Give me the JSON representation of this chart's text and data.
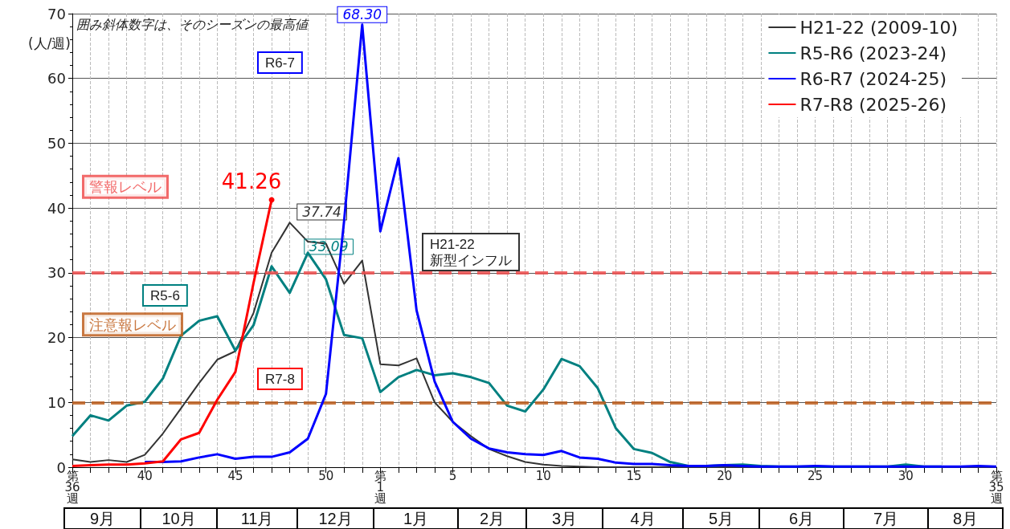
{
  "chart_data": {
    "type": "line",
    "ylabel": "(人/週)",
    "categories": [
      "第\n36\n週",
      null,
      null,
      null,
      "40",
      null,
      null,
      null,
      null,
      "45",
      null,
      null,
      null,
      null,
      "50",
      null,
      null,
      "第\n1\n週",
      null,
      null,
      null,
      "5",
      null,
      null,
      null,
      null,
      "10",
      null,
      null,
      null,
      null,
      "15",
      null,
      null,
      null,
      null,
      "20",
      null,
      null,
      null,
      null,
      "25",
      null,
      null,
      null,
      null,
      "30",
      null,
      null,
      null,
      null,
      "第\n35\n週"
    ],
    "series": [
      {
        "name": "H21-22 (2009-10)",
        "color": "#333333",
        "values": [
          1.2,
          0.8,
          1.1,
          0.8,
          1.9,
          5.2,
          9.1,
          13.0,
          16.6,
          17.9,
          23.8,
          33.1,
          37.74,
          34.8,
          34.5,
          28.3,
          31.9,
          15.9,
          15.7,
          16.8,
          10.0,
          7.0,
          4.8,
          2.8,
          1.7,
          0.8,
          0.4,
          0.2,
          0.1,
          0,
          0,
          0,
          0,
          0,
          0,
          0,
          0,
          0,
          0,
          0,
          0,
          0,
          0,
          0,
          0,
          0,
          0,
          0,
          0,
          0,
          0,
          0
        ],
        "value_labels": [
          null,
          null,
          null,
          null,
          null,
          null,
          null,
          null,
          null,
          null,
          null,
          null,
          "37.74",
          null,
          null,
          null,
          null,
          null,
          null,
          null,
          null,
          null,
          null,
          null,
          null,
          null,
          null,
          null,
          null,
          null,
          null,
          null,
          null,
          null,
          null,
          null,
          null,
          null,
          null,
          null,
          null,
          null,
          null,
          null,
          null,
          null,
          null,
          null,
          null,
          null,
          null,
          null
        ]
      },
      {
        "name": "R5-R6 (2023-24)",
        "color": "#008080",
        "values": [
          4.8,
          8.0,
          7.2,
          9.5,
          10.1,
          13.7,
          20.3,
          22.6,
          23.3,
          18.0,
          21.9,
          31.0,
          26.9,
          33.09,
          29.0,
          20.4,
          19.9,
          11.6,
          13.9,
          15.0,
          14.2,
          14.5,
          13.9,
          13.0,
          9.5,
          8.6,
          12.0,
          16.7,
          15.6,
          12.2,
          6.0,
          2.8,
          2.2,
          0.8,
          0.2,
          0.2,
          0.3,
          0.4,
          0.2,
          0.1,
          0.1,
          0.1,
          0.1,
          0.1,
          0.1,
          0.1,
          0.4,
          0.1,
          0.1,
          null,
          null,
          null
        ],
        "value_labels": [
          null,
          null,
          null,
          null,
          null,
          null,
          null,
          null,
          null,
          null,
          null,
          null,
          null,
          "33.09",
          null,
          null,
          null,
          null,
          null,
          null,
          null,
          null,
          null,
          null,
          null,
          null,
          null,
          null,
          null,
          null,
          null,
          null,
          null,
          null,
          null,
          null,
          null,
          null,
          null,
          null,
          null,
          null,
          null,
          null,
          null,
          null,
          null,
          null,
          null,
          null,
          null,
          null
        ]
      },
      {
        "name": "R6-R7 (2024-25)",
        "color": "#0000ff",
        "values": [
          null,
          null,
          null,
          null,
          0.8,
          0.8,
          0.9,
          1.5,
          2.0,
          1.3,
          1.6,
          1.6,
          2.3,
          4.4,
          11.3,
          38.0,
          68.3,
          36.4,
          47.7,
          24.2,
          13.2,
          7.0,
          4.4,
          2.9,
          2.3,
          2.0,
          1.9,
          2.5,
          1.5,
          1.3,
          0.7,
          0.5,
          0.5,
          0.3,
          0.2,
          0.2,
          0.3,
          0.2,
          0.1,
          0.1,
          0.1,
          0.2,
          0.1,
          0.1,
          0.1,
          0.1,
          0.1,
          0.1,
          0.1,
          0.1,
          0.2,
          0.1
        ],
        "value_labels": [
          null,
          null,
          null,
          null,
          null,
          null,
          null,
          null,
          null,
          null,
          null,
          null,
          null,
          null,
          null,
          null,
          "68.30",
          null,
          null,
          null,
          null,
          null,
          null,
          null,
          null,
          null,
          null,
          null,
          null,
          null,
          null,
          null,
          null,
          null,
          null,
          null,
          null,
          null,
          null,
          null,
          null,
          null,
          null,
          null,
          null,
          null,
          null,
          null,
          null,
          null,
          null,
          null
        ]
      },
      {
        "name": "R7-R8 (2025-26)",
        "color": "#ff0000",
        "values": [
          0.2,
          0.3,
          0.4,
          0.4,
          0.6,
          0.9,
          4.3,
          5.3,
          10.4,
          14.7,
          28.4,
          41.26,
          null,
          null,
          null,
          null,
          null,
          null,
          null,
          null,
          null,
          null,
          null,
          null,
          null,
          null,
          null,
          null,
          null,
          null,
          null,
          null,
          null,
          null,
          null,
          null,
          null,
          null,
          null,
          null,
          null,
          null,
          null,
          null,
          null,
          null,
          null,
          null,
          null,
          null,
          null,
          null
        ],
        "value_labels": [
          null,
          null,
          null,
          null,
          null,
          null,
          null,
          null,
          null,
          null,
          null,
          "41.26",
          null,
          null,
          null,
          null,
          null,
          null,
          null,
          null,
          null,
          null,
          null,
          null,
          null,
          null,
          null,
          null,
          null,
          null,
          null,
          null,
          null,
          null,
          null,
          null,
          null,
          null,
          null,
          null,
          null,
          null,
          null,
          null,
          null,
          null,
          null,
          null,
          null,
          null,
          null,
          null
        ]
      }
    ],
    "ylim": [
      0,
      70
    ],
    "yticks": [
      0,
      10,
      20,
      30,
      40,
      50,
      60,
      70
    ],
    "grid": true,
    "legend": "top right",
    "ref_lines": [
      {
        "axis": "y",
        "value": 30,
        "label": "警報レベル",
        "color": "#f05050",
        "line_style": "dashed"
      },
      {
        "axis": "y",
        "value": 10,
        "label": "注意報レベル",
        "color": "#c06020",
        "line_style": "dashed"
      }
    ],
    "annotations": [
      "囲み斜体数字は、そのシーズンの最高値",
      "R6-7",
      "R5-6",
      "R7-8",
      "H21-22\n新型インフル",
      "9月",
      "10月",
      "11月",
      "12月",
      "1月",
      "2月",
      "3月",
      "4月",
      "5月",
      "6月",
      "7月",
      "8月"
    ]
  }
}
